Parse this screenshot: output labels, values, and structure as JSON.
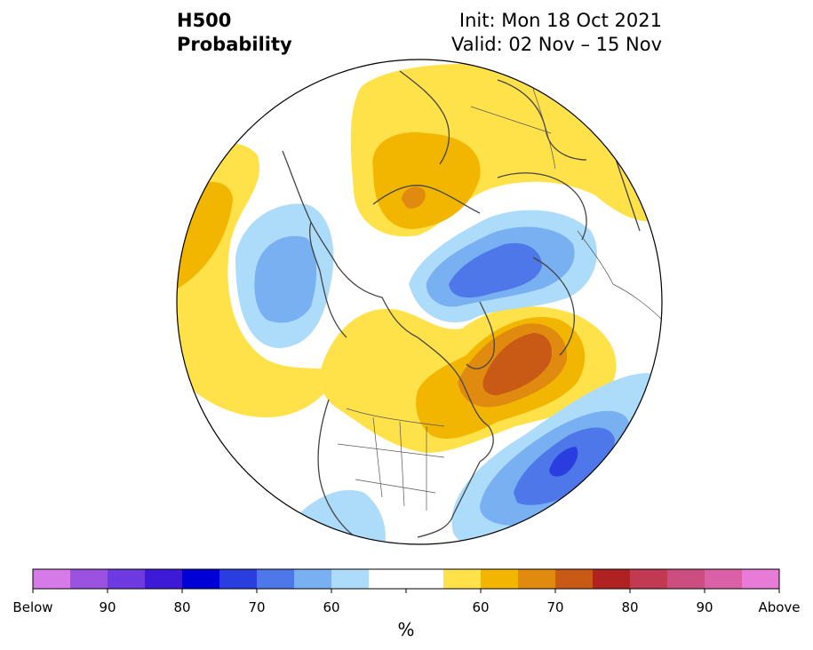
{
  "title": {
    "left_line1": "H500",
    "left_line2": "Probability",
    "right_line1": "Init: Mon 18 Oct 2021",
    "right_line2": "Valid: 02 Nov – 15 Nov"
  },
  "colorbar": {
    "unit": "%",
    "colors": [
      "#d67ae8",
      "#9c52e0",
      "#6c3ae0",
      "#3c1ad6",
      "#0000d6",
      "#2a3ee0",
      "#4e78ea",
      "#78b0f2",
      "#acdcfa",
      "#ffffff",
      "#ffe14a",
      "#f2b600",
      "#e08a10",
      "#c85a16",
      "#b02222",
      "#c23a52",
      "#cc4e80",
      "#da60a8",
      "#e87ad8"
    ],
    "tick_labels": [
      "Below",
      "90",
      "80",
      "70",
      "60",
      "",
      "60",
      "70",
      "80",
      "90",
      "Above"
    ]
  },
  "map": {
    "region": "Northern Hemisphere polar view",
    "anomaly_colors": {
      "above_60": "#ffe14a",
      "above_65": "#f2b600",
      "above_70": "#e08a10",
      "above_75": "#c85a16",
      "below_60": "#acdcfa",
      "below_65": "#78b0f2",
      "below_70": "#4e78ea",
      "below_75": "#2a3ee0"
    }
  }
}
